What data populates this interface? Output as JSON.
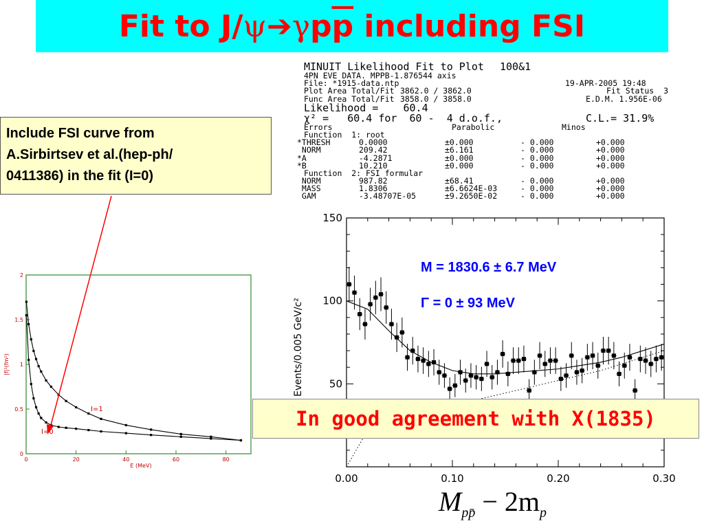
{
  "title": {
    "part1": "Fit to J/",
    "psi": "ψ",
    "arrow": "➔",
    "gamma": "γ",
    "p": "p",
    "pbar": "p",
    "part2": " including FSI"
  },
  "fsi_note": {
    "line1": "Include FSI curve from",
    "line2": "A.Sirbirtsev et al.(hep-ph/",
    "line3": "0411386) in the fit (I=0)"
  },
  "minuit": {
    "title": "MINUIT Likelihood Fit to Plot",
    "plot_id": "100&1",
    "line_data": "4PN EVE DATA. MPPB-1.876544 axis",
    "line_file": "File: *1915-data.ntp",
    "date": "19-APR-2005 19:48",
    "plot_area_label": "Plot Area Total/Fit",
    "plot_area_value": "3862.0 / 3862.0",
    "fit_status": "Fit Status  3",
    "func_area_label": "Func Area Total/Fit",
    "func_area_value": "3858.0 / 3858.0",
    "edm": "E.D.M. 1.956E-06",
    "likelihood": "Likelihood =    60.4",
    "chi2": "χ² =   60.4 for  60 -  4 d.o.f.,",
    "cl": "C.L.= 31.9%",
    "errors": "Errors",
    "parabolic": "Parabolic",
    "minos": "Minos",
    "function1": "Function  1: root",
    "function2": "Function  2: FSI formular",
    "params": [
      {
        "name": "*THRESH",
        "value": "0.0000",
        "error": "±0.000",
        "minus": "- 0.000",
        "plus": "+0.000"
      },
      {
        "name": " NORM",
        "value": "209.42",
        "error": "±6.161",
        "minus": "- 0.000",
        "plus": "+0.000"
      },
      {
        "name": "*A",
        "value": "-4.2871",
        "error": "±0.000",
        "minus": "- 0.000",
        "plus": "+0.000"
      },
      {
        "name": "*B",
        "value": "10.210",
        "error": "±0.000",
        "minus": "- 0.000",
        "plus": "+0.000"
      },
      {
        "name": " NORM",
        "value": "987.82",
        "error": "±68.41",
        "minus": "- 0.000",
        "plus": "+0.000"
      },
      {
        "name": " MASS",
        "value": "1.8306",
        "error": "±6.6624E-03",
        "minus": "- 0.000",
        "plus": "+0.000"
      },
      {
        "name": " GAM",
        "value": "-3.48707E-05",
        "error": "±9.2650E-02",
        "minus": "- 0.000",
        "plus": "+0.000"
      }
    ]
  },
  "fit_results": {
    "mass": "M = 1830.6 ± 6.7 MeV",
    "gamma": "Γ = 0 ± 93 MeV"
  },
  "agreement": "In good agreement with X(1835)",
  "x_formula": {
    "M": "M",
    "sub": "pp̄",
    "rest": " − 2m",
    "sub2": "p"
  },
  "chart_data": [
    {
      "type": "line",
      "xlabel": "E (MeV)",
      "ylabel": "|f|²(fm²)",
      "x_ticks": [
        "0",
        "20",
        "40",
        "60",
        "80"
      ],
      "y_ticks": [
        "0",
        "0.5",
        "1",
        "1.5",
        "2"
      ],
      "xlim": [
        0,
        90
      ],
      "ylim": [
        0,
        2
      ],
      "grid": false,
      "series": [
        {
          "name": "I=1",
          "color": "#000000",
          "x": [
            0.1,
            1,
            2,
            3,
            4,
            5,
            6,
            8,
            10,
            13,
            16,
            20,
            25,
            30,
            40,
            50,
            62,
            74,
            86
          ],
          "y": [
            1.7,
            1.45,
            1.28,
            1.15,
            1.06,
            0.98,
            0.92,
            0.82,
            0.75,
            0.66,
            0.59,
            0.52,
            0.45,
            0.39,
            0.32,
            0.27,
            0.22,
            0.19,
            0.15
          ]
        },
        {
          "name": "I=0",
          "color": "#000000",
          "x": [
            0.1,
            1,
            2,
            3,
            4,
            5,
            6,
            8,
            10,
            13,
            16,
            20,
            25,
            30,
            40,
            50,
            62,
            74,
            86
          ],
          "y": [
            1.55,
            1.05,
            0.78,
            0.62,
            0.52,
            0.45,
            0.4,
            0.35,
            0.32,
            0.3,
            0.29,
            0.28,
            0.265,
            0.25,
            0.23,
            0.21,
            0.19,
            0.17,
            0.15
          ]
        }
      ]
    },
    {
      "type": "scatter",
      "xlabel": "",
      "ylabel": "Events/0.005 GeV/c²",
      "x_ticks": [
        "0.00",
        "0.10",
        "0.20",
        "0.30"
      ],
      "y_ticks": [
        "50",
        "100",
        "150"
      ],
      "xlim": [
        0,
        0.3
      ],
      "ylim": [
        0,
        150
      ],
      "grid": false,
      "series": [
        {
          "name": "data",
          "x": [
            0.0025,
            0.0075,
            0.0125,
            0.0175,
            0.0225,
            0.0275,
            0.0325,
            0.0375,
            0.0425,
            0.0475,
            0.0525,
            0.0575,
            0.0625,
            0.0675,
            0.0725,
            0.0775,
            0.0825,
            0.0875,
            0.0925,
            0.0975,
            0.1025,
            0.1075,
            0.1125,
            0.1175,
            0.1225,
            0.1275,
            0.1325,
            0.1375,
            0.1425,
            0.1475,
            0.1525,
            0.1575,
            0.1625,
            0.1675,
            0.1725,
            0.1775,
            0.1825,
            0.1875,
            0.1925,
            0.1975,
            0.2025,
            0.2075,
            0.2125,
            0.2175,
            0.2225,
            0.2275,
            0.2325,
            0.2375,
            0.2425,
            0.2475,
            0.2525,
            0.2575,
            0.2625,
            0.2675,
            0.2725,
            0.2775,
            0.2825,
            0.2875,
            0.2925,
            0.2975
          ],
          "y": [
            110,
            105,
            92,
            86,
            98,
            102,
            104,
            96,
            86,
            78,
            81,
            66,
            70,
            65,
            64,
            62,
            63,
            57,
            55,
            47,
            49,
            57,
            52,
            55,
            54,
            53,
            62,
            54,
            57,
            68,
            56,
            64,
            64,
            65,
            46,
            57,
            67,
            62,
            64,
            64,
            53,
            55,
            67,
            57,
            58,
            66,
            67,
            61,
            70,
            70,
            67,
            56,
            61,
            66,
            46,
            65,
            64,
            62,
            65,
            66
          ]
        },
        {
          "name": "fit",
          "x": [
            0.0,
            0.02,
            0.04,
            0.06,
            0.08,
            0.1,
            0.12,
            0.14,
            0.16,
            0.18,
            0.2,
            0.22,
            0.24,
            0.26,
            0.28,
            0.3
          ],
          "y": [
            100,
            95,
            82,
            70,
            63,
            58,
            56,
            56,
            57,
            58,
            59,
            61,
            63,
            66,
            70,
            74
          ]
        },
        {
          "name": "background",
          "x": [
            0.0,
            0.02,
            0.04,
            0.06,
            0.08,
            0.1,
            0.12,
            0.14,
            0.16,
            0.18,
            0.2,
            0.22,
            0.24,
            0.26,
            0.28,
            0.3
          ],
          "y": [
            0,
            22,
            28,
            31,
            34,
            37,
            40,
            43,
            46,
            49,
            52,
            55,
            58,
            62,
            66,
            70
          ]
        }
      ]
    }
  ]
}
